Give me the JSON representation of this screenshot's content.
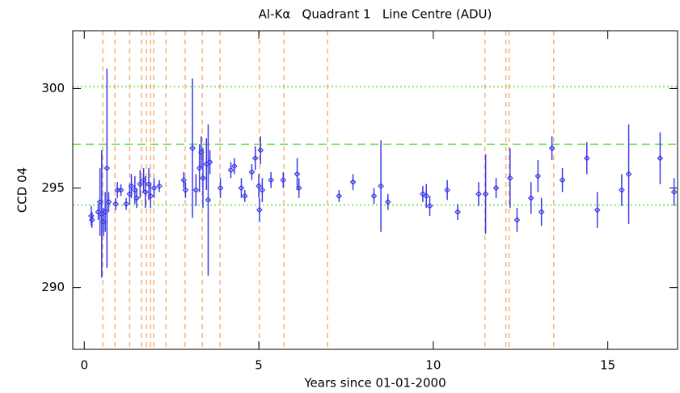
{
  "chart_data": {
    "type": "scatter",
    "title": "Al-Kα   Quadrant 1   Line Centre (ADU)",
    "xlabel": "Years since 01-01-2000",
    "ylabel": "CCD 04",
    "color": "#3a3ae8",
    "x": [
      0.2,
      0.22,
      0.4,
      0.45,
      0.5,
      0.55,
      0.6,
      0.65,
      0.7,
      0.9,
      0.95,
      1.05,
      1.2,
      1.3,
      1.35,
      1.45,
      1.5,
      1.6,
      1.7,
      1.75,
      1.85,
      1.9,
      2.0,
      2.15,
      2.85,
      2.9,
      3.1,
      3.2,
      3.3,
      3.35,
      3.4,
      3.5,
      3.55,
      3.6,
      3.9,
      4.2,
      4.3,
      4.5,
      4.6,
      4.8,
      4.9,
      5.0,
      5.02,
      5.05,
      5.1,
      5.35,
      5.7,
      6.1,
      6.15,
      7.3,
      7.7,
      8.3,
      8.5,
      8.7,
      9.7,
      9.8,
      9.9,
      10.4,
      10.7,
      11.3,
      11.5,
      11.8,
      12.2,
      12.4,
      12.8,
      13.0,
      13.1,
      13.4,
      13.7,
      14.4,
      14.7,
      15.4,
      15.6,
      16.5,
      16.9
    ],
    "values": [
      293.6,
      293.4,
      293.8,
      294.3,
      293.7,
      293.3,
      293.8,
      296.0,
      294.3,
      294.2,
      294.9,
      294.9,
      294.2,
      294.7,
      295.1,
      294.9,
      294.5,
      295.2,
      295.4,
      294.8,
      295.2,
      294.6,
      295.0,
      295.1,
      295.4,
      294.9,
      297.0,
      294.9,
      296.0,
      296.8,
      295.5,
      296.2,
      294.4,
      296.3,
      295.0,
      295.9,
      296.1,
      295.0,
      294.6,
      295.8,
      296.5,
      295.1,
      293.9,
      296.9,
      294.9,
      295.4,
      295.4,
      295.7,
      295.0,
      294.6,
      295.3,
      294.6,
      295.1,
      294.3,
      294.7,
      294.6,
      294.1,
      294.9,
      293.8,
      294.7,
      294.7,
      295.0,
      295.5,
      293.4,
      294.5,
      295.6,
      293.8,
      297.0,
      295.4,
      296.5,
      293.9,
      294.9,
      295.7,
      296.5,
      294.8
    ],
    "errors": [
      0.5,
      0.4,
      0.4,
      1.7,
      3.2,
      0.7,
      1.0,
      5.0,
      0.5,
      0.3,
      0.4,
      0.3,
      0.3,
      0.5,
      0.6,
      0.7,
      0.5,
      0.7,
      0.6,
      0.8,
      0.8,
      0.6,
      0.5,
      0.3,
      0.4,
      0.4,
      3.5,
      0.8,
      1.2,
      0.8,
      1.5,
      1.3,
      3.8,
      0.6,
      0.5,
      0.4,
      0.4,
      0.5,
      0.3,
      0.4,
      0.6,
      0.6,
      0.6,
      0.7,
      0.6,
      0.4,
      0.4,
      0.8,
      0.5,
      0.3,
      0.4,
      0.4,
      2.3,
      0.4,
      0.4,
      0.6,
      0.5,
      0.5,
      0.4,
      0.6,
      2.0,
      0.5,
      1.5,
      0.6,
      0.8,
      0.8,
      0.7,
      0.6,
      0.6,
      0.8,
      0.9,
      0.8,
      2.5,
      1.3,
      0.7
    ],
    "xlim": [
      -0.33,
      17.0
    ],
    "ylim": [
      286.9,
      302.9
    ],
    "xticks": [
      0,
      5,
      10,
      15
    ],
    "yticks": [
      290,
      295,
      300
    ],
    "hlines": [
      {
        "value": 297.2,
        "style": "dashed"
      },
      {
        "value": 300.1,
        "style": "dotted"
      },
      {
        "value": 294.15,
        "style": "dotted"
      }
    ],
    "hline_color": "#66dd44",
    "vlines": [
      0.53,
      0.88,
      1.3,
      1.64,
      1.78,
      1.9,
      1.99,
      2.34,
      2.89,
      3.38,
      3.89,
      5.02,
      5.72,
      6.97,
      11.48,
      12.08,
      12.17,
      13.45
    ],
    "vline_color": "#f5b27a"
  }
}
